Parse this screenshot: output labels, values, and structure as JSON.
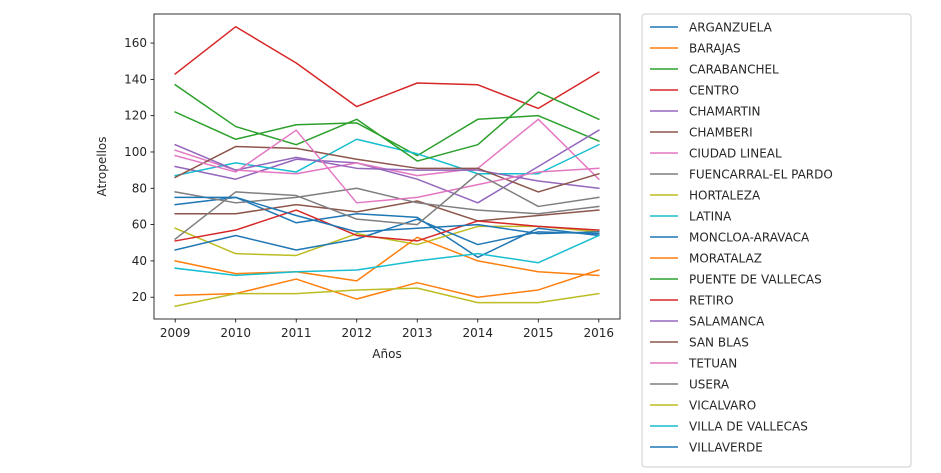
{
  "chart_data": {
    "type": "line",
    "title": "",
    "xlabel": "Años",
    "ylabel": "Atropellos",
    "x": [
      2009,
      2010,
      2011,
      2012,
      2013,
      2014,
      2015,
      2016
    ],
    "xlim": [
      2008.65,
      2016.35
    ],
    "ylim": [
      8,
      176
    ],
    "yticks": [
      20,
      40,
      60,
      80,
      100,
      120,
      140,
      160
    ],
    "grid": false,
    "legend_position": "outside-right",
    "series": [
      {
        "name": "ARGANZUELA",
        "color": "#1f77b4",
        "values": [
          71,
          75,
          61,
          66,
          64,
          42,
          58,
          54
        ]
      },
      {
        "name": "BARAJAS",
        "color": "#ff7f0e",
        "values": [
          21,
          22,
          30,
          19,
          28,
          20,
          24,
          35
        ]
      },
      {
        "name": "CARABANCHEL",
        "color": "#2ca02c",
        "values": [
          122,
          107,
          115,
          116,
          98,
          118,
          120,
          106
        ]
      },
      {
        "name": "CENTRO",
        "color": "#d62728",
        "values": [
          143,
          169,
          149,
          125,
          138,
          137,
          124,
          144
        ]
      },
      {
        "name": "CHAMARTIN",
        "color": "#9467bd",
        "values": [
          92,
          85,
          96,
          94,
          85,
          72,
          92,
          112
        ]
      },
      {
        "name": "CHAMBERI",
        "color": "#8c564b",
        "values": [
          66,
          66,
          71,
          67,
          73,
          62,
          65,
          68
        ]
      },
      {
        "name": "CIUDAD LINEAL",
        "color": "#e377c2",
        "values": [
          101,
          90,
          88,
          94,
          87,
          91,
          118,
          85
        ]
      },
      {
        "name": "FUENCARRAL-EL PARDO",
        "color": "#7f7f7f",
        "values": [
          78,
          72,
          75,
          80,
          72,
          68,
          66,
          70
        ]
      },
      {
        "name": "HORTALEZA",
        "color": "#bcbd22",
        "values": [
          58,
          44,
          43,
          55,
          49,
          59,
          59,
          56
        ]
      },
      {
        "name": "LATINA",
        "color": "#17becf",
        "values": [
          87,
          94,
          89,
          107,
          99,
          88,
          88,
          104
        ]
      },
      {
        "name": "MONCLOA-ARAVACA",
        "color": "#1f77b4",
        "values": [
          46,
          54,
          46,
          52,
          63,
          49,
          56,
          55
        ]
      },
      {
        "name": "MORATALAZ",
        "color": "#ff7f0e",
        "values": [
          40,
          33,
          34,
          29,
          53,
          40,
          34,
          32
        ]
      },
      {
        "name": "PUENTE DE VALLECAS",
        "color": "#2ca02c",
        "values": [
          137,
          114,
          104,
          118,
          95,
          104,
          133,
          118
        ]
      },
      {
        "name": "RETIRO",
        "color": "#d62728",
        "values": [
          51,
          57,
          68,
          54,
          51,
          62,
          59,
          57
        ]
      },
      {
        "name": "SALAMANCA",
        "color": "#9467bd",
        "values": [
          104,
          90,
          97,
          91,
          90,
          90,
          84,
          80
        ]
      },
      {
        "name": "SAN BLAS",
        "color": "#8c564b",
        "values": [
          86,
          103,
          102,
          96,
          91,
          91,
          78,
          88
        ]
      },
      {
        "name": "TETUAN",
        "color": "#e377c2",
        "values": [
          98,
          89,
          112,
          72,
          75,
          82,
          89,
          91
        ]
      },
      {
        "name": "USERA",
        "color": "#7f7f7f",
        "values": [
          52,
          78,
          76,
          63,
          60,
          88,
          70,
          75
        ]
      },
      {
        "name": "VICALVARO",
        "color": "#bcbd22",
        "values": [
          15,
          22,
          22,
          24,
          25,
          17,
          17,
          22
        ]
      },
      {
        "name": "VILLA DE VALLECAS",
        "color": "#17becf",
        "values": [
          36,
          32,
          34,
          35,
          40,
          44,
          39,
          54
        ]
      },
      {
        "name": "VILLAVERDE",
        "color": "#1f77b4",
        "values": [
          75,
          75,
          65,
          56,
          58,
          60,
          55,
          56
        ]
      }
    ]
  }
}
